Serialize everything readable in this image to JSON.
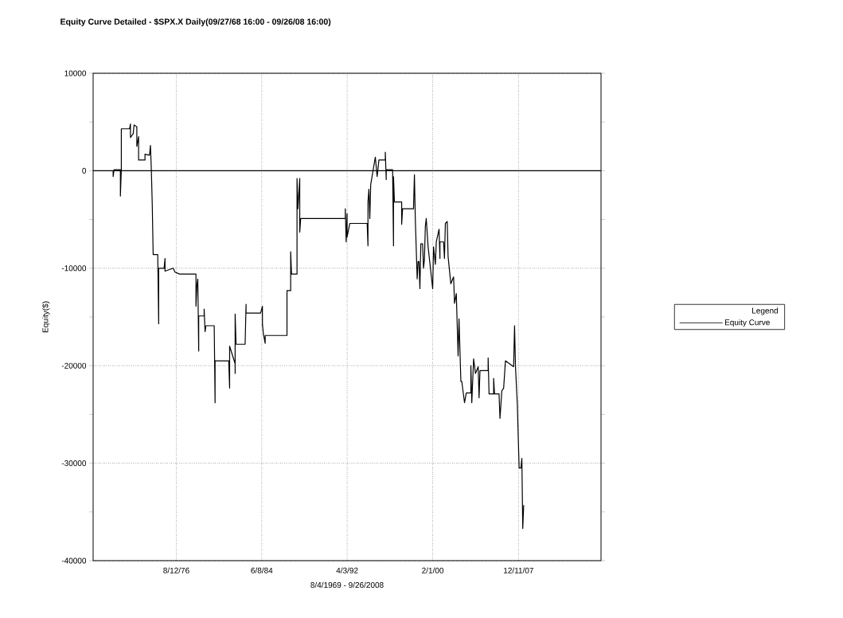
{
  "chart_data": {
    "type": "line",
    "title": "Equity Curve Detailed - $SPX.X Daily(09/27/68 16:00 - 09/26/08 16:00)",
    "xlabel": "8/4/1969 - 9/26/2008",
    "ylabel": "Equity($)",
    "legend_title": "Legend",
    "x": [
      "1970-11",
      "1970-11",
      "1970-12",
      "1971-07",
      "1971-07",
      "1971-08",
      "1971-08",
      "1972-05",
      "1972-06",
      "1972-06",
      "1972-09",
      "1972-10",
      "1973-01",
      "1973-01",
      "1973-03",
      "1973-03",
      "1973-10",
      "1973-10",
      "1974-03",
      "1974-04",
      "1974-05",
      "1974-06",
      "1974-07",
      "1974-12",
      "1975-01",
      "1975-01",
      "1975-07",
      "1975-08",
      "1975-08",
      "1976-05",
      "1976-07",
      "1976-12",
      "1978-06",
      "1978-06",
      "1978-07",
      "1978-08",
      "1978-09",
      "1978-09",
      "1979-03",
      "1979-03",
      "1979-04",
      "1979-05",
      "1980-02",
      "1980-03",
      "1980-03",
      "1981-06",
      "1981-07",
      "1981-07",
      "1982-01",
      "1982-01",
      "1982-01",
      "1982-02",
      "1982-12",
      "1983-01",
      "1983-01",
      "1984-05",
      "1984-07",
      "1984-07",
      "1984-07",
      "1984-08",
      "1984-10",
      "1984-10",
      "1986-10",
      "1986-10",
      "1987-02",
      "1987-02",
      "1987-03",
      "1987-09",
      "1987-09",
      "1987-10",
      "1987-12",
      "1987-12",
      "1988-01",
      "1992-02",
      "1992-02",
      "1992-03",
      "1992-04",
      "1992-04",
      "1992-07",
      "1994-02",
      "1994-03",
      "1994-03",
      "1994-04",
      "1994-05",
      "1994-06",
      "1994-11",
      "1995-01",
      "1995-03",
      "1995-10",
      "1995-10",
      "1995-11",
      "1995-11",
      "1996-06",
      "1996-07",
      "1996-07",
      "1996-08",
      "1997-04",
      "1997-04",
      "1997-05",
      "1998-05",
      "1998-06",
      "1998-07",
      "1998-09",
      "1998-10",
      "1998-11",
      "1998-12",
      "1999-01",
      "1999-03",
      "1999-04",
      "1999-05",
      "1999-06",
      "1999-07",
      "1999-09",
      "2000-02",
      "2000-03",
      "2000-05",
      "2000-06",
      "2000-09",
      "2000-10",
      "2000-10",
      "2001-02",
      "2001-03",
      "2001-04",
      "2001-06",
      "2001-07",
      "2001-10",
      "2001-12",
      "2002-01",
      "2002-02",
      "2002-04",
      "2002-06",
      "2002-07",
      "2002-09",
      "2002-10",
      "2003-01",
      "2003-03",
      "2003-08",
      "2003-08",
      "2003-09",
      "2003-11",
      "2004-01",
      "2004-04",
      "2004-05",
      "2004-06",
      "2005-03",
      "2005-03",
      "2005-04",
      "2005-09",
      "2005-09",
      "2005-10",
      "2006-03",
      "2006-04",
      "2006-06",
      "2006-08",
      "2006-10",
      "2007-07",
      "2007-08",
      "2007-09",
      "2007-11",
      "2007-12",
      "2008-01",
      "2008-03",
      "2008-04",
      "2008-05",
      "2008-06"
    ],
    "series": [
      {
        "name": "Equity Curve",
        "color": "#000000",
        "values": [
          0,
          -600,
          100,
          100,
          -2600,
          100,
          4300,
          4300,
          4800,
          3400,
          3800,
          4700,
          4500,
          2500,
          3500,
          1100,
          1100,
          1700,
          1600,
          2600,
          100,
          -3500,
          -8600,
          -8600,
          -15700,
          -10000,
          -10000,
          -9000,
          -10300,
          -10000,
          -10400,
          -10600,
          -10600,
          -13900,
          -11800,
          -11100,
          -18500,
          -14900,
          -14900,
          -14200,
          -16500,
          -15900,
          -15900,
          -23800,
          -19500,
          -19500,
          -22300,
          -18000,
          -19800,
          -20800,
          -14700,
          -17800,
          -17800,
          -13700,
          -14600,
          -14600,
          -13900,
          -15900,
          -15700,
          -16700,
          -17700,
          -16900,
          -16900,
          -12300,
          -12300,
          -8300,
          -10600,
          -10600,
          -800,
          -3900,
          -800,
          -6300,
          -4900,
          -4900,
          -3900,
          -7300,
          -4400,
          -6800,
          -5400,
          -5400,
          -7700,
          -3200,
          -1900,
          -4900,
          -1400,
          1400,
          -600,
          1100,
          1100,
          1900,
          -900,
          100,
          100,
          -7700,
          -600,
          -3200,
          -3200,
          -5500,
          -3900,
          -3900,
          -400,
          -5000,
          -11100,
          -9300,
          -9300,
          -12100,
          -7500,
          -7500,
          -10000,
          -9100,
          -5700,
          -4900,
          -7800,
          -12100,
          -7800,
          -9600,
          -7300,
          -6000,
          -9000,
          -7300,
          -7300,
          -9000,
          -5400,
          -5200,
          -8800,
          -11600,
          -11100,
          -10900,
          -13600,
          -12600,
          -19000,
          -15200,
          -21600,
          -21600,
          -23800,
          -22800,
          -22800,
          -20000,
          -23800,
          -19300,
          -20800,
          -20100,
          -23300,
          -20500,
          -20500,
          -19200,
          -22900,
          -22900,
          -21300,
          -22900,
          -22900,
          -25400,
          -22600,
          -22300,
          -19500,
          -20100,
          -15900,
          -20100,
          -23900,
          -27200,
          -30500,
          -30500,
          -29500,
          -36700,
          -34300
        ]
      }
    ],
    "xlim": [
      "1969-01",
      "2015-07"
    ],
    "ylim": [
      -40000,
      10000
    ],
    "xticks": [
      {
        "value": "1976-08-12",
        "label": "8/12/76"
      },
      {
        "value": "1984-06-08",
        "label": "6/8/84"
      },
      {
        "value": "1992-04-03",
        "label": "4/3/92"
      },
      {
        "value": "2000-02-01",
        "label": "2/1/00"
      },
      {
        "value": "2007-12-11",
        "label": "12/11/07"
      }
    ],
    "yticks": [
      -40000,
      {
        "value": -35000,
        "label": null
      },
      -30000,
      {
        "value": -25000,
        "label": null
      },
      -20000,
      {
        "value": -15000,
        "label": null
      },
      -10000,
      {
        "value": -5000,
        "label": null
      },
      0,
      {
        "value": 5000,
        "label": null
      },
      10000
    ],
    "grid": true,
    "legend": "right",
    "ref_lines": [
      {
        "axis": "y",
        "value": 0
      }
    ]
  }
}
